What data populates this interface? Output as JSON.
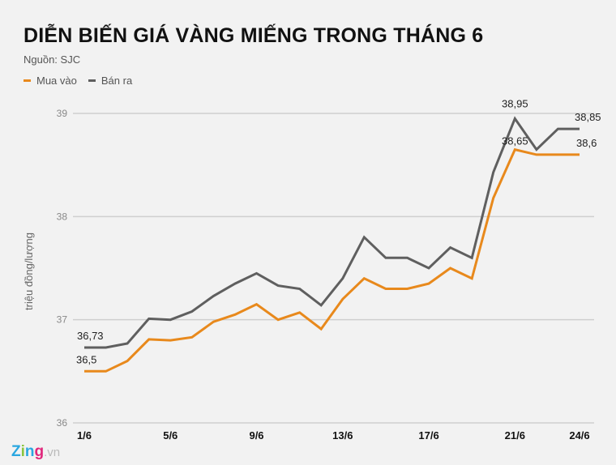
{
  "header": {
    "title": "DIỄN BIẾN GIÁ VÀNG MIẾNG TRONG THÁNG 6",
    "source": "Nguồn: SJC"
  },
  "legend": [
    {
      "label": "Mua vào",
      "color": "#e8891c"
    },
    {
      "label": "Bán ra",
      "color": "#5f5f5f"
    }
  ],
  "branding": {
    "logo": "Zing",
    "suffix": ".vn"
  },
  "chart_data": {
    "type": "line",
    "title": "DIỄN BIẾN GIÁ VÀNG MIẾNG TRONG THÁNG 6",
    "subtitle": "Nguồn: SJC",
    "xlabel": "",
    "ylabel": "triệu đồng/lượng",
    "ylim": [
      36,
      39
    ],
    "yticks": [
      36,
      37,
      38,
      39
    ],
    "x": [
      "1/6",
      "2/6",
      "3/6",
      "4/6",
      "5/6",
      "6/6",
      "7/6",
      "8/6",
      "9/6",
      "10/6",
      "11/6",
      "12/6",
      "13/6",
      "14/6",
      "15/6",
      "16/6",
      "17/6",
      "18/6",
      "19/6",
      "20/6",
      "21/6",
      "22/6",
      "23/6",
      "24/6"
    ],
    "xtick_labels": [
      "1/6",
      "5/6",
      "9/6",
      "13/6",
      "17/6",
      "21/6",
      "24/6"
    ],
    "grid": true,
    "legend_position": "top-left",
    "series": [
      {
        "name": "Mua vào",
        "color": "#e8891c",
        "values": [
          36.5,
          36.5,
          36.6,
          36.81,
          36.8,
          36.83,
          36.98,
          37.05,
          37.15,
          37.0,
          37.07,
          36.91,
          37.2,
          37.4,
          37.3,
          37.3,
          37.35,
          37.5,
          37.4,
          38.18,
          38.65,
          38.6,
          38.6,
          38.6
        ]
      },
      {
        "name": "Bán ra",
        "color": "#5f5f5f",
        "values": [
          36.73,
          36.73,
          36.77,
          37.01,
          37.0,
          37.08,
          37.23,
          37.35,
          37.45,
          37.33,
          37.3,
          37.14,
          37.4,
          37.8,
          37.6,
          37.6,
          37.5,
          37.7,
          37.6,
          38.43,
          38.95,
          38.65,
          38.85,
          38.85
        ]
      }
    ],
    "annotations": [
      {
        "x": "1/6",
        "series": "Bán ra",
        "text": "36,73"
      },
      {
        "x": "1/6",
        "series": "Mua vào",
        "text": "36,5"
      },
      {
        "x": "21/6",
        "series": "Bán ra",
        "text": "38,95"
      },
      {
        "x": "21/6",
        "series": "Mua vào",
        "text": "38,65"
      },
      {
        "x": "24/6",
        "series": "Bán ra",
        "text": "38,85"
      },
      {
        "x": "24/6",
        "series": "Mua vào",
        "text": "38,6"
      }
    ]
  }
}
